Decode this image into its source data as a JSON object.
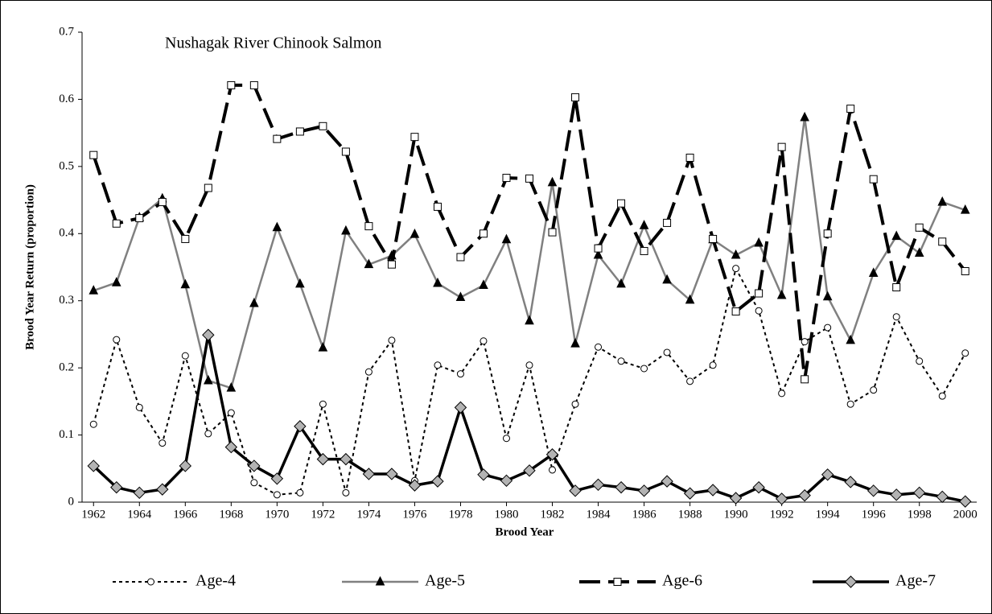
{
  "chart_data": {
    "type": "line",
    "title": "Nushagak River Chinook Salmon",
    "x_label": "Brood Year",
    "y_label": "Brood Year Return (proportion)",
    "x": [
      1962,
      1963,
      1964,
      1965,
      1966,
      1967,
      1968,
      1969,
      1970,
      1971,
      1972,
      1973,
      1974,
      1975,
      1976,
      1977,
      1978,
      1979,
      1980,
      1981,
      1982,
      1983,
      1984,
      1985,
      1986,
      1987,
      1988,
      1989,
      1990,
      1991,
      1992,
      1993,
      1994,
      1995,
      1996,
      1997,
      1998,
      1999,
      2000
    ],
    "xlim": [
      1961.5,
      2000.5
    ],
    "xticks": [
      1962,
      1964,
      1966,
      1968,
      1970,
      1972,
      1974,
      1976,
      1978,
      1980,
      1982,
      1984,
      1986,
      1988,
      1990,
      1992,
      1994,
      1996,
      1998,
      2000
    ],
    "ylim": [
      0,
      0.7
    ],
    "yticks": [
      0,
      0.1,
      0.2,
      0.3,
      0.4,
      0.5,
      0.6,
      0.7
    ],
    "grid": false,
    "legend": "bottom",
    "series": [
      {
        "name": "Age-4",
        "color": "#000000",
        "line_style": "dotted",
        "marker": "circle",
        "marker_fill": "#ffffff",
        "values": [
          0.116,
          0.242,
          0.141,
          0.088,
          0.218,
          0.102,
          0.133,
          0.029,
          0.011,
          0.014,
          0.146,
          0.014,
          0.194,
          0.241,
          0.032,
          0.204,
          0.191,
          0.24,
          0.095,
          0.204,
          0.048,
          0.146,
          0.231,
          0.21,
          0.199,
          0.223,
          0.18,
          0.204,
          0.348,
          0.285,
          0.162,
          0.239,
          0.26,
          0.146,
          0.167,
          0.276,
          0.21,
          0.158,
          0.222
        ]
      },
      {
        "name": "Age-5",
        "color": "#808080",
        "line_style": "solid",
        "marker": "triangle",
        "marker_fill": "#000000",
        "values": [
          0.315,
          0.327,
          0.424,
          0.452,
          0.324,
          0.181,
          0.17,
          0.296,
          0.409,
          0.325,
          0.23,
          0.404,
          0.354,
          0.367,
          0.399,
          0.326,
          0.305,
          0.323,
          0.391,
          0.27,
          0.476,
          0.236,
          0.368,
          0.325,
          0.412,
          0.331,
          0.301,
          0.391,
          0.368,
          0.386,
          0.308,
          0.573,
          0.306,
          0.241,
          0.341,
          0.396,
          0.371,
          0.447,
          0.435
        ]
      },
      {
        "name": "Age-6",
        "color": "#000000",
        "line_style": "dashed",
        "marker": "square",
        "marker_fill": "#ffffff",
        "values": [
          0.517,
          0.415,
          0.423,
          0.447,
          0.392,
          0.468,
          0.621,
          0.621,
          0.541,
          0.552,
          0.56,
          0.522,
          0.411,
          0.354,
          0.544,
          0.44,
          0.365,
          0.4,
          0.483,
          0.482,
          0.402,
          0.603,
          0.378,
          0.445,
          0.374,
          0.416,
          0.513,
          0.392,
          0.284,
          0.311,
          0.529,
          0.183,
          0.4,
          0.586,
          0.481,
          0.32,
          0.409,
          0.388,
          0.344
        ]
      },
      {
        "name": "Age-7",
        "color": "#000000",
        "line_style": "solid",
        "marker": "diamond",
        "marker_fill": "#b3b3b3",
        "values": [
          0.054,
          0.022,
          0.014,
          0.019,
          0.054,
          0.249,
          0.082,
          0.054,
          0.035,
          0.113,
          0.064,
          0.064,
          0.042,
          0.042,
          0.025,
          0.031,
          0.141,
          0.041,
          0.032,
          0.047,
          0.071,
          0.017,
          0.026,
          0.022,
          0.017,
          0.031,
          0.013,
          0.018,
          0.006,
          0.022,
          0.005,
          0.01,
          0.041,
          0.03,
          0.017,
          0.011,
          0.014,
          0.008,
          0.001
        ]
      }
    ]
  }
}
